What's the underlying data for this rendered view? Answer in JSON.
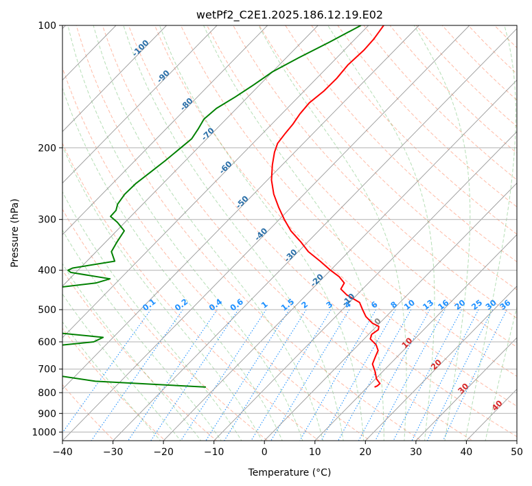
{
  "chart_data": {
    "type": "skew-t",
    "title": "wetPf2_C2E1.2025.186.12.19.E02",
    "xlabel": "Temperature (°C)",
    "ylabel": "Pressure (hPa)",
    "xlim": [
      -40,
      50
    ],
    "ylim": [
      1050,
      100
    ],
    "y_scale": "log",
    "grid": true,
    "x_ticks": [
      "−40",
      "−30",
      "−20",
      "−10",
      "0",
      "10",
      "20",
      "30",
      "40",
      "50"
    ],
    "x_tick_values": [
      -40,
      -30,
      -20,
      -10,
      0,
      10,
      20,
      30,
      40,
      50
    ],
    "y_ticks": [
      "100",
      "200",
      "300",
      "400",
      "500",
      "600",
      "700",
      "800",
      "900",
      "1000"
    ],
    "y_tick_values": [
      100,
      200,
      300,
      400,
      500,
      600,
      700,
      800,
      900,
      1000
    ],
    "series": [
      {
        "kind": "temperature",
        "color": "#ff0000",
        "points": [
          [
            100,
            -57.0
          ],
          [
            108,
            -56.3
          ],
          [
            115,
            -56.1
          ],
          [
            125,
            -56.4
          ],
          [
            135,
            -56.0
          ],
          [
            145,
            -56.1
          ],
          [
            155,
            -56.7
          ],
          [
            165,
            -56.4
          ],
          [
            175,
            -55.8
          ],
          [
            185,
            -55.5
          ],
          [
            195,
            -55.1
          ],
          [
            205,
            -54.0
          ],
          [
            220,
            -52.0
          ],
          [
            240,
            -49.2
          ],
          [
            260,
            -46.0
          ],
          [
            280,
            -42.5
          ],
          [
            300,
            -39.0
          ],
          [
            320,
            -35.5
          ],
          [
            340,
            -31.5
          ],
          [
            360,
            -28.0
          ],
          [
            380,
            -23.8
          ],
          [
            400,
            -20.0
          ],
          [
            415,
            -17.0
          ],
          [
            430,
            -14.8
          ],
          [
            445,
            -14.3
          ],
          [
            460,
            -12.0
          ],
          [
            480,
            -8.0
          ],
          [
            500,
            -6.0
          ],
          [
            520,
            -4.0
          ],
          [
            540,
            -1.4
          ],
          [
            550,
            0.5
          ],
          [
            560,
            1.0
          ],
          [
            575,
            0.6
          ],
          [
            590,
            1.2
          ],
          [
            610,
            3.5
          ],
          [
            630,
            5.0
          ],
          [
            650,
            5.6
          ],
          [
            680,
            6.5
          ],
          [
            710,
            8.5
          ],
          [
            740,
            10.2
          ],
          [
            760,
            11.8
          ],
          [
            770,
            11.7
          ],
          [
            775,
            11.4
          ]
        ]
      },
      {
        "kind": "dewpoint",
        "color": "#008000",
        "points": [
          [
            100,
            -61.5
          ],
          [
            110,
            -64.5
          ],
          [
            120,
            -67.5
          ],
          [
            130,
            -70.0
          ],
          [
            140,
            -71.2
          ],
          [
            150,
            -72.5
          ],
          [
            160,
            -74.0
          ],
          [
            170,
            -74.4
          ],
          [
            180,
            -73.6
          ],
          [
            190,
            -73.0
          ],
          [
            200,
            -73.4
          ],
          [
            215,
            -74.0
          ],
          [
            230,
            -74.7
          ],
          [
            245,
            -75.4
          ],
          [
            260,
            -75.5
          ],
          [
            275,
            -75.0
          ],
          [
            285,
            -74.1
          ],
          [
            295,
            -74.0
          ],
          [
            305,
            -71.5
          ],
          [
            320,
            -68.5
          ],
          [
            340,
            -67.8
          ],
          [
            360,
            -67.0
          ],
          [
            380,
            -64.5
          ],
          [
            395,
            -71.5
          ],
          [
            400,
            -72.0
          ],
          [
            405,
            -71.0
          ],
          [
            420,
            -62.0
          ],
          [
            430,
            -64.0
          ],
          [
            440,
            -70.0
          ],
          [
            455,
            -76.0
          ],
          [
            470,
            -79.5
          ],
          [
            485,
            -81.0
          ],
          [
            500,
            -79.5
          ],
          [
            515,
            -75.5
          ],
          [
            530,
            -76.0
          ],
          [
            540,
            -85.0
          ],
          [
            545,
            -100.0
          ],
          [
            560,
            -100.0
          ],
          [
            570,
            -62.0
          ],
          [
            585,
            -52.0
          ],
          [
            600,
            -53.0
          ],
          [
            620,
            -63.0
          ],
          [
            640,
            -67.5
          ],
          [
            660,
            -63.0
          ],
          [
            680,
            -57.0
          ],
          [
            700,
            -60.0
          ],
          [
            720,
            -56.0
          ],
          [
            750,
            -45.0
          ],
          [
            775,
            -22.0
          ]
        ]
      }
    ],
    "mixing_ratio_labels": [
      "0.1",
      "0.2",
      "0.4",
      "0.6",
      "1",
      "1.5",
      "2",
      "3",
      "4",
      "6",
      "8",
      "10",
      "13",
      "16",
      "20",
      "25",
      "30",
      "36"
    ],
    "dry_adiabat_labels": [
      "-100",
      "-90",
      "-80",
      "-70",
      "-60",
      "-50",
      "-40",
      "-30",
      "-20",
      "-10"
    ],
    "moist_adiabat_labels": [
      "0",
      "10",
      "20",
      "30",
      "40"
    ]
  }
}
